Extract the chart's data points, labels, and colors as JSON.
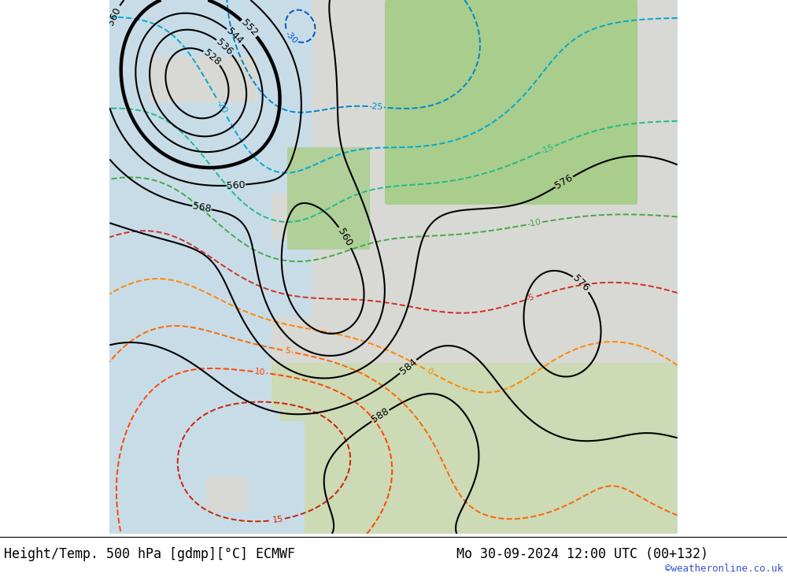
{
  "title_left": "Height/Temp. 500 hPa [gdmp][°C] ECMWF",
  "title_right": "Mo 30-09-2024 12:00 UTC (00+132)",
  "copyright": "©weatheronline.co.uk",
  "fig_width": 10.0,
  "fig_height": 7.33,
  "dpi": 100,
  "lonmin": -30,
  "lonmax": 40,
  "latmin": 25,
  "latmax": 72,
  "land_color": "#d8d8d4",
  "sea_color": "#c8dce8",
  "green_n_color": "#a0cc80",
  "green_s_color": "#c8dca8",
  "green_canary_color": "#b8d898",
  "coast_color": "#999999",
  "height_color": "#000000",
  "temp_colors": {
    "-35": "#0033bb",
    "-30": "#0055cc",
    "-25": "#0088cc",
    "-20": "#00aacc",
    "-15": "#22bb88",
    "-10": "#44aa44",
    "-5": "#cc3322",
    "0": "#ff8800",
    "5": "#ff6600",
    "10": "#ff4400",
    "15": "#cc2200"
  },
  "title_fontsize": 12,
  "copyright_fontsize": 9
}
